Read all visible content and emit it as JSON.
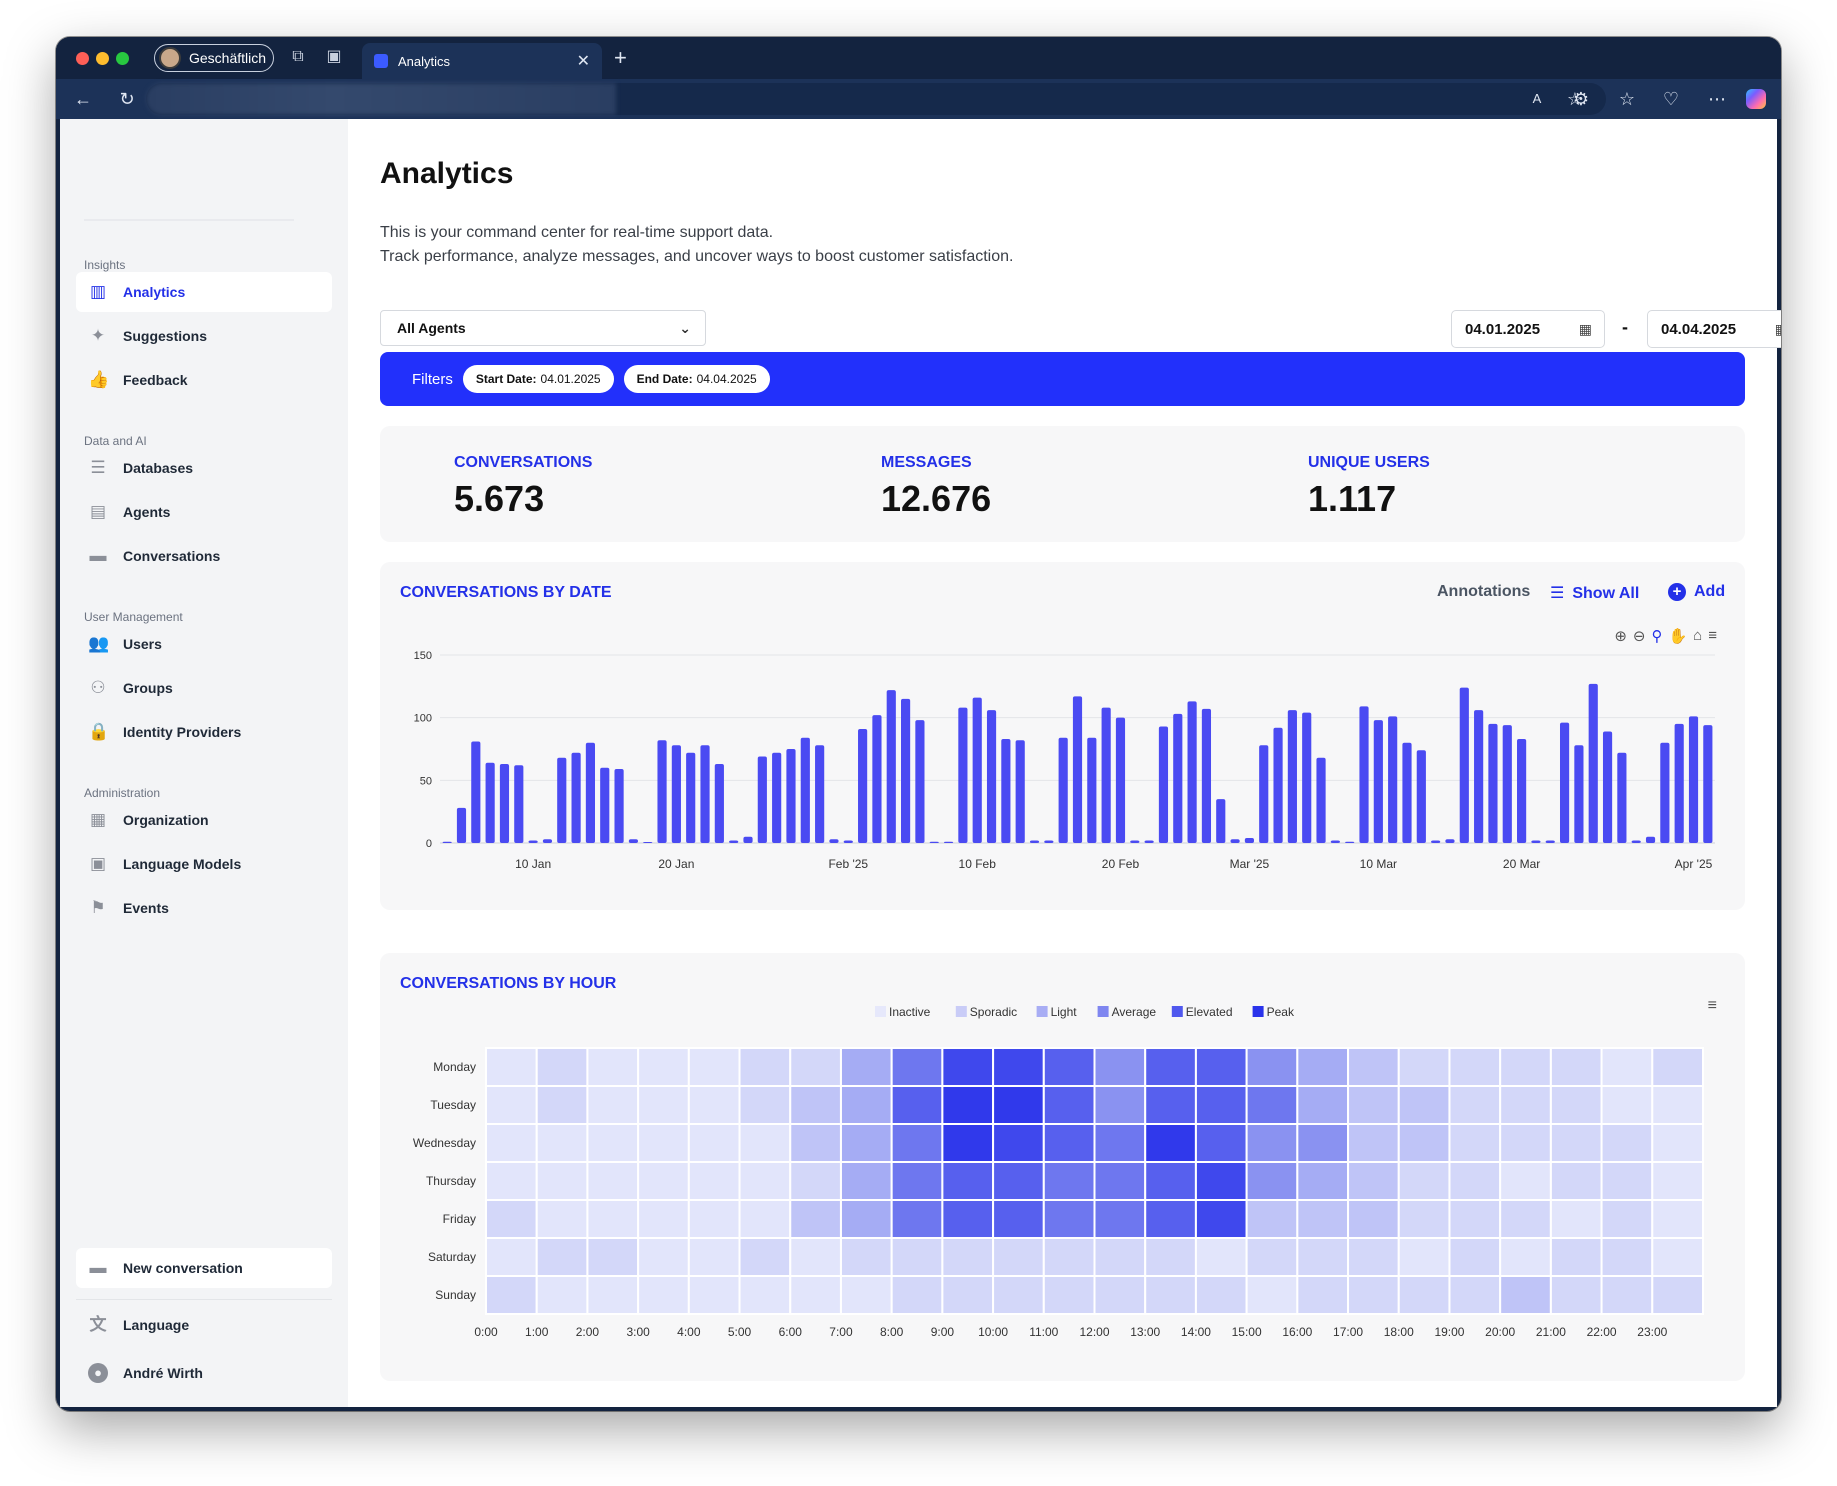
{
  "browser": {
    "profile_label": "Geschäftlich",
    "tab_title": "Analytics"
  },
  "sidebar": {
    "sections": [
      {
        "title": "Insights",
        "items": [
          {
            "label": "Analytics",
            "icon": "bar-chart-icon",
            "active": true
          },
          {
            "label": "Suggestions",
            "icon": "sparkles-icon"
          },
          {
            "label": "Feedback",
            "icon": "thumbs-up-icon"
          }
        ]
      },
      {
        "title": "Data and AI",
        "items": [
          {
            "label": "Databases",
            "icon": "database-icon"
          },
          {
            "label": "Agents",
            "icon": "id-card-icon"
          },
          {
            "label": "Conversations",
            "icon": "chat-bubbles-icon"
          }
        ]
      },
      {
        "title": "User Management",
        "items": [
          {
            "label": "Users",
            "icon": "users-icon"
          },
          {
            "label": "Groups",
            "icon": "groups-icon"
          },
          {
            "label": "Identity Providers",
            "icon": "lock-icon"
          }
        ]
      },
      {
        "title": "Administration",
        "items": [
          {
            "label": "Organization",
            "icon": "building-icon"
          },
          {
            "label": "Language Models",
            "icon": "chip-icon"
          },
          {
            "label": "Events",
            "icon": "flag-icon"
          }
        ]
      }
    ],
    "new_conversation": "New conversation",
    "language": "Language",
    "user_name": "André Wirth"
  },
  "page": {
    "title": "Analytics",
    "desc_line1": "This is your command center for real-time support data.",
    "desc_line2": "Track performance, analyze messages, and uncover ways to boost customer satisfaction."
  },
  "filters": {
    "agent_select": "All Agents",
    "start_date": "04.01.2025",
    "end_date": "04.04.2025",
    "dash": "-",
    "label": "Filters",
    "chip_start_label": "Start Date:",
    "chip_end_label": "End Date:"
  },
  "stats": [
    {
      "label": "CONVERSATIONS",
      "value": "5.673"
    },
    {
      "label": "MESSAGES",
      "value": "12.676"
    },
    {
      "label": "UNIQUE USERS",
      "value": "1.117"
    }
  ],
  "date_chart": {
    "title": "CONVERSATIONS BY DATE",
    "annotations_label": "Annotations",
    "show_all_label": "Show All",
    "add_label": "Add"
  },
  "hour_chart": {
    "title": "CONVERSATIONS BY HOUR"
  },
  "colors": {
    "accent": "#2330e8",
    "filter_bar": "#2230fb",
    "bar": "#4a4af2"
  },
  "chart_data": [
    {
      "type": "bar",
      "title": "CONVERSATIONS BY DATE",
      "ylim": [
        0,
        150
      ],
      "yticks": [
        0,
        50,
        100,
        150
      ],
      "xtick_labels": [
        "10 Jan",
        "20 Jan",
        "Feb '25",
        "10 Feb",
        "20 Feb",
        "Mar '25",
        "10 Mar",
        "20 Mar",
        "Apr '25"
      ],
      "xtick_positions_day_index": [
        6,
        16,
        28,
        37,
        47,
        56,
        65,
        75,
        87
      ],
      "x_start": "2025-01-04",
      "values": [
        1,
        28,
        81,
        64,
        63,
        62,
        2,
        3,
        68,
        72,
        80,
        60,
        59,
        3,
        0,
        82,
        78,
        72,
        78,
        63,
        2,
        5,
        69,
        72,
        75,
        84,
        78,
        3,
        2,
        91,
        102,
        122,
        115,
        98,
        1,
        1,
        108,
        116,
        106,
        83,
        82,
        2,
        2,
        84,
        117,
        84,
        108,
        100,
        2,
        2,
        93,
        103,
        113,
        107,
        35,
        3,
        4,
        78,
        92,
        106,
        104,
        68,
        2,
        1,
        109,
        98,
        101,
        80,
        74,
        2,
        3,
        124,
        106,
        95,
        94,
        83,
        2,
        2,
        96,
        78,
        127,
        89,
        72,
        2,
        5,
        80,
        95,
        101,
        94
      ]
    },
    {
      "type": "heatmap",
      "title": "CONVERSATIONS BY HOUR",
      "legend": [
        "Inactive",
        "Sporadic",
        "Light",
        "Average",
        "Elevated",
        "Peak"
      ],
      "legend_colors": [
        "#e6e8fb",
        "#c9ccf7",
        "#a8adf4",
        "#7f86f0",
        "#5058ee",
        "#2a33eb"
      ],
      "rows": [
        "Monday",
        "Tuesday",
        "Wednesday",
        "Thursday",
        "Friday",
        "Saturday",
        "Sunday"
      ],
      "columns": [
        "0:00",
        "1:00",
        "2:00",
        "3:00",
        "4:00",
        "5:00",
        "6:00",
        "7:00",
        "8:00",
        "9:00",
        "10:00",
        "11:00",
        "12:00",
        "13:00",
        "14:00",
        "15:00",
        "16:00",
        "17:00",
        "18:00",
        "19:00",
        "20:00",
        "21:00",
        "22:00",
        "23:00"
      ],
      "values": [
        [
          1,
          2,
          1,
          1,
          1,
          2,
          2,
          4,
          6,
          8,
          8,
          7,
          5,
          7,
          7,
          5,
          4,
          3,
          2,
          2,
          2,
          2,
          1,
          2
        ],
        [
          1,
          2,
          1,
          1,
          1,
          2,
          3,
          4,
          7,
          9,
          9,
          7,
          5,
          7,
          7,
          6,
          4,
          3,
          3,
          2,
          2,
          2,
          1,
          1
        ],
        [
          1,
          1,
          1,
          1,
          1,
          1,
          3,
          4,
          6,
          9,
          8,
          7,
          6,
          9,
          7,
          5,
          5,
          3,
          3,
          2,
          2,
          2,
          2,
          1
        ],
        [
          1,
          1,
          1,
          1,
          1,
          1,
          2,
          4,
          6,
          7,
          7,
          6,
          6,
          7,
          8,
          5,
          4,
          3,
          2,
          2,
          1,
          2,
          2,
          1
        ],
        [
          2,
          1,
          1,
          1,
          1,
          1,
          3,
          4,
          6,
          7,
          7,
          6,
          6,
          7,
          8,
          3,
          3,
          3,
          2,
          2,
          2,
          1,
          2,
          1
        ],
        [
          1,
          2,
          2,
          1,
          1,
          2,
          1,
          2,
          2,
          2,
          2,
          2,
          2,
          2,
          1,
          2,
          2,
          2,
          1,
          2,
          1,
          2,
          2,
          1
        ],
        [
          2,
          1,
          1,
          1,
          1,
          1,
          1,
          1,
          2,
          2,
          2,
          2,
          2,
          2,
          2,
          1,
          2,
          2,
          2,
          2,
          3,
          2,
          2,
          2
        ]
      ]
    }
  ]
}
